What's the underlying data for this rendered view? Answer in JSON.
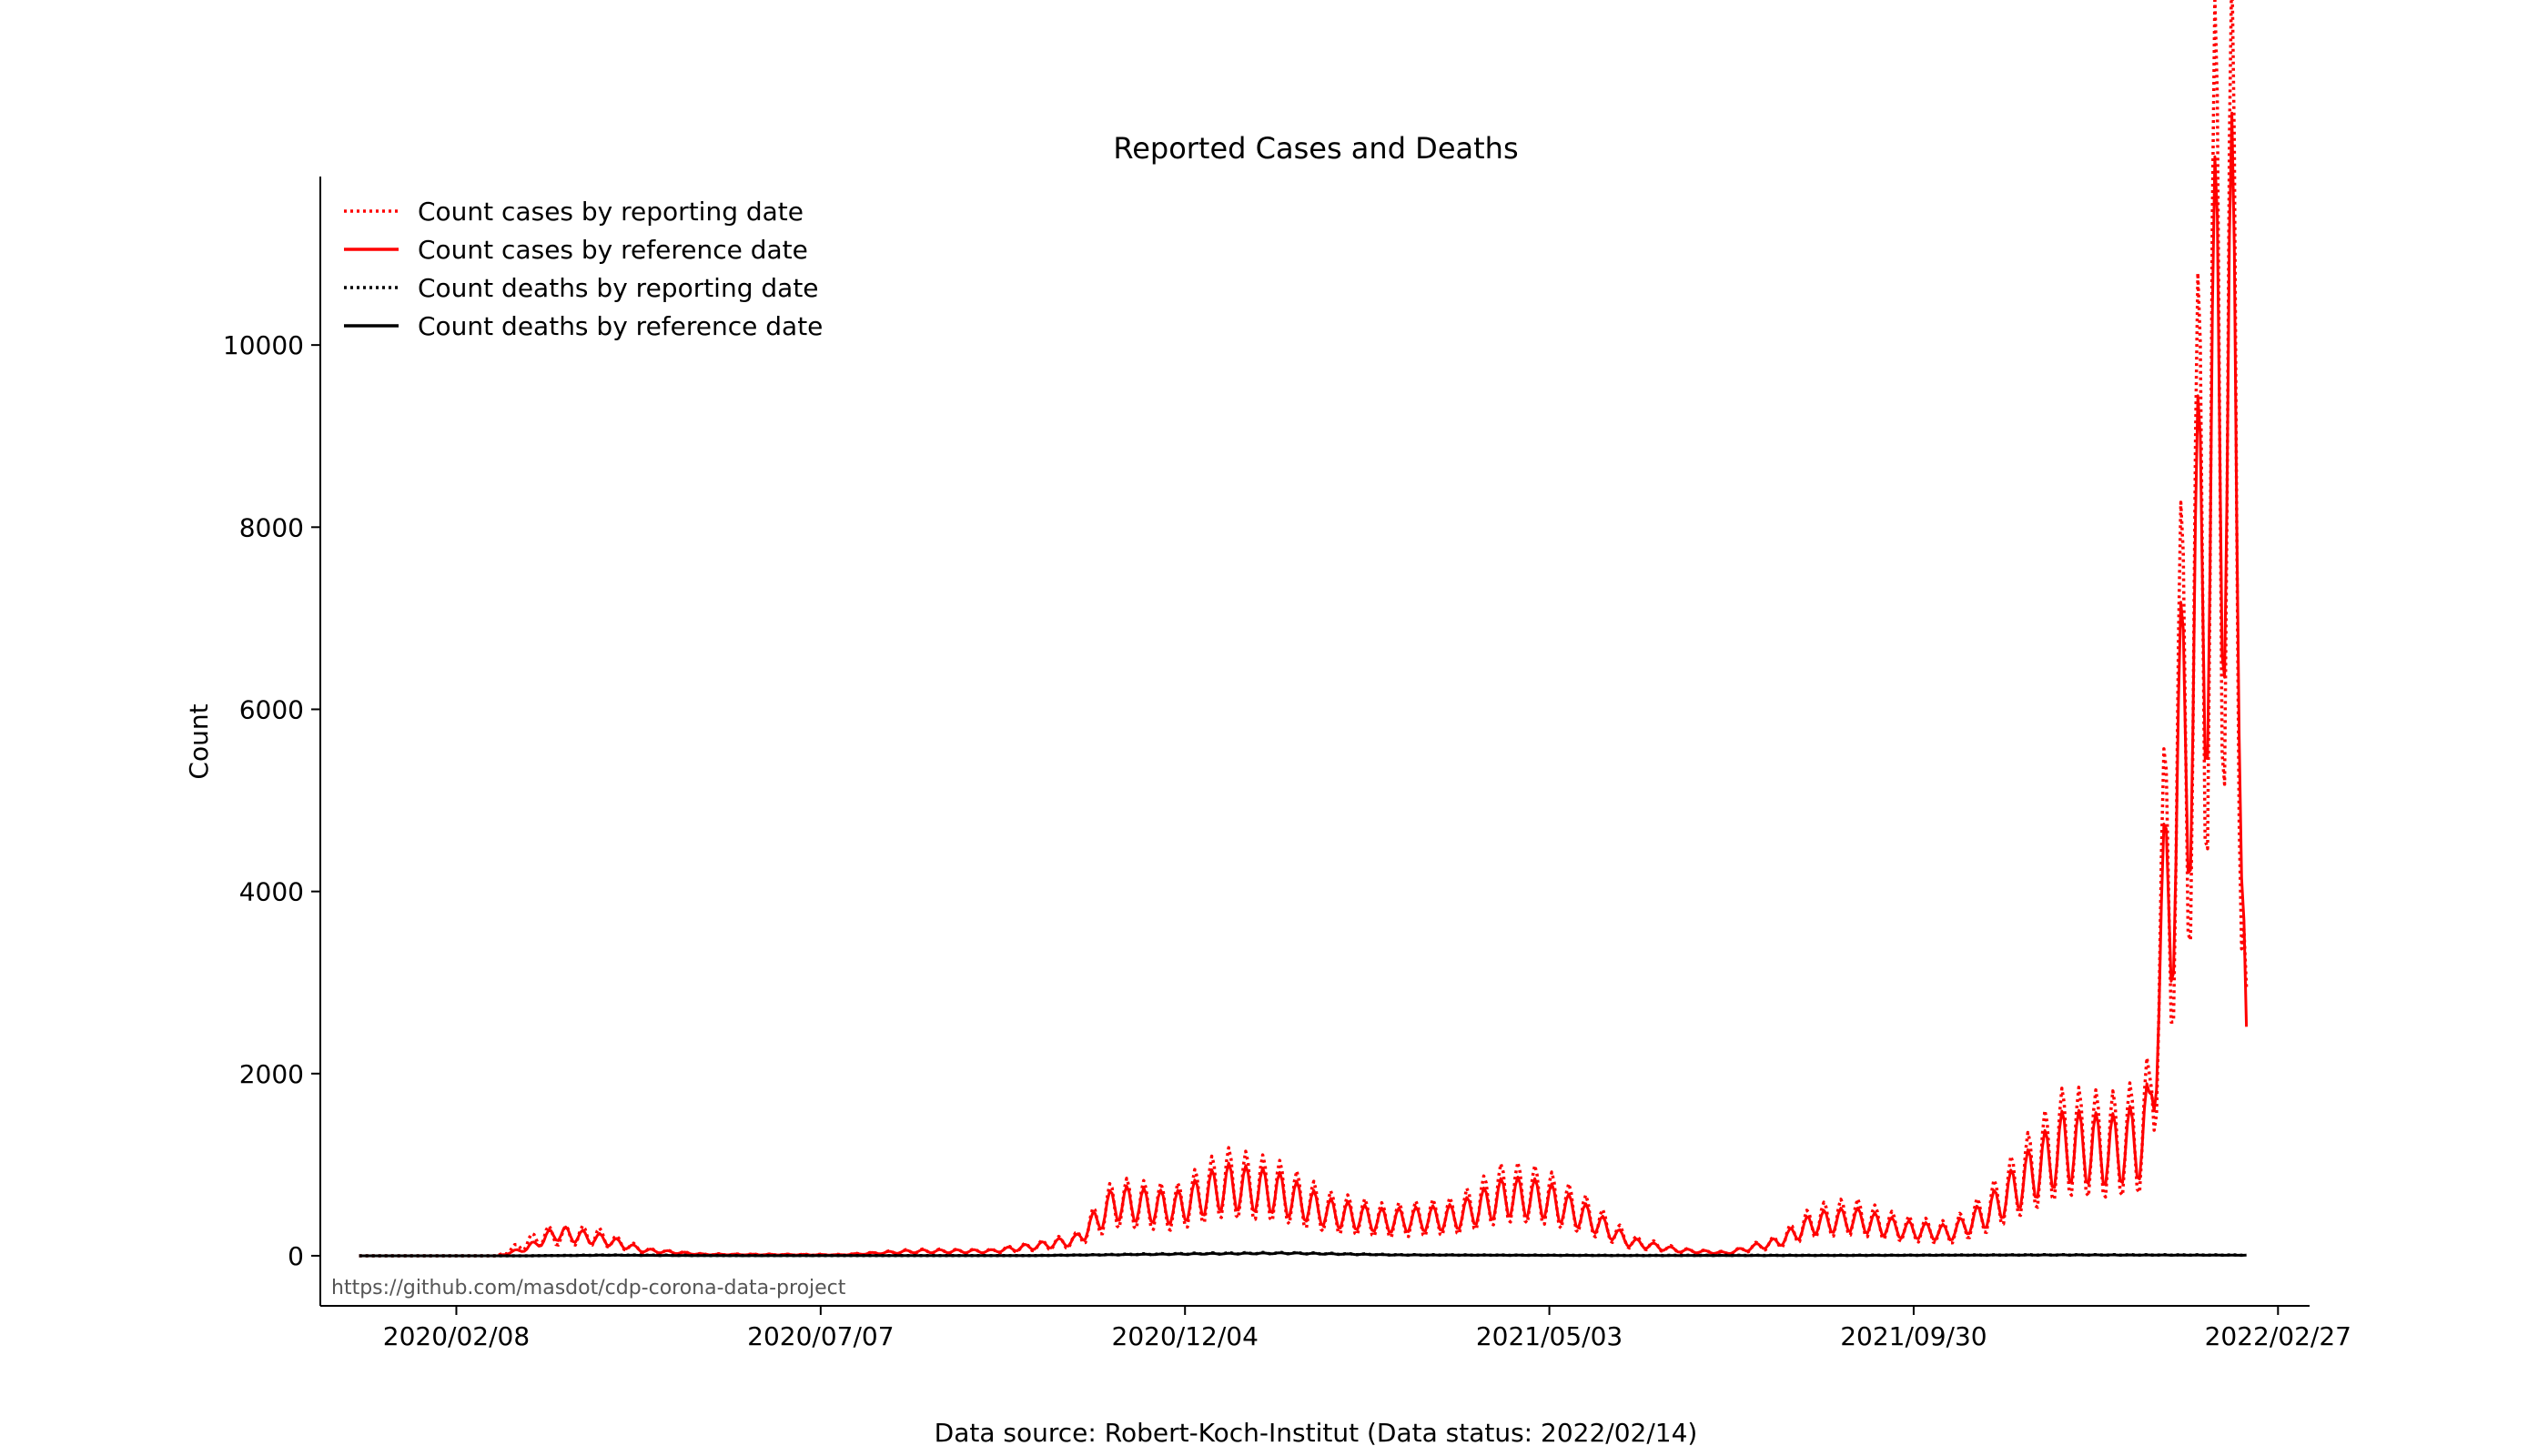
{
  "chart_data": {
    "type": "line",
    "title": "Reported Cases and Deaths",
    "xlabel": "",
    "ylabel": "Count",
    "x_start": "2019-12-30",
    "x_end": "2022-02-14",
    "xlim": [
      "2019-12-14",
      "2022-03-12"
    ],
    "ylim": [
      -550,
      11850
    ],
    "yticks": [
      0,
      2000,
      4000,
      6000,
      8000,
      10000
    ],
    "ytick_labels": [
      "0",
      "2000",
      "4000",
      "6000",
      "8000",
      "10000"
    ],
    "xticks": [
      "2020-02-08",
      "2020-07-07",
      "2020-12-04",
      "2021-05-03",
      "2021-09-30",
      "2022-02-27"
    ],
    "xtick_labels": [
      "2020/02/08",
      "2020/07/07",
      "2020/12/04",
      "2021/05/03",
      "2021/09/30",
      "2022/02/27"
    ],
    "legend_position": "top-left",
    "series": [
      {
        "name": "Count cases by reporting date",
        "color": "#ff0000",
        "style": "dotted",
        "weekly_modulation": 0.5,
        "anchors": [
          [
            "2019-12-30",
            0
          ],
          [
            "2020-02-25",
            0
          ],
          [
            "2020-03-15",
            220
          ],
          [
            "2020-04-05",
            220
          ],
          [
            "2020-04-25",
            60
          ],
          [
            "2020-05-20",
            15
          ],
          [
            "2020-07-15",
            10
          ],
          [
            "2020-08-15",
            50
          ],
          [
            "2020-09-15",
            50
          ],
          [
            "2020-10-05",
            110
          ],
          [
            "2020-10-20",
            170
          ],
          [
            "2020-11-05",
            580
          ],
          [
            "2020-11-30",
            520
          ],
          [
            "2020-12-20",
            800
          ],
          [
            "2021-01-10",
            720
          ],
          [
            "2021-02-01",
            480
          ],
          [
            "2021-02-25",
            380
          ],
          [
            "2021-03-25",
            430
          ],
          [
            "2021-04-15",
            700
          ],
          [
            "2021-05-01",
            650
          ],
          [
            "2021-05-20",
            420
          ],
          [
            "2021-06-05",
            160
          ],
          [
            "2021-06-25",
            60
          ],
          [
            "2021-07-15",
            30
          ],
          [
            "2021-08-05",
            150
          ],
          [
            "2021-08-20",
            380
          ],
          [
            "2021-09-05",
            430
          ],
          [
            "2021-09-25",
            300
          ],
          [
            "2021-10-15",
            250
          ],
          [
            "2021-10-30",
            480
          ],
          [
            "2021-11-15",
            880
          ],
          [
            "2021-12-01",
            1250
          ],
          [
            "2021-12-20",
            1200
          ],
          [
            "2022-01-01",
            1300
          ],
          [
            "2022-01-05",
            1500
          ],
          [
            "2022-01-08",
            2900
          ],
          [
            "2022-01-15",
            4800
          ],
          [
            "2022-01-25",
            7200
          ],
          [
            "2022-02-03",
            9800
          ],
          [
            "2022-02-08",
            9500
          ],
          [
            "2022-02-11",
            8400
          ],
          [
            "2022-02-13",
            4200
          ],
          [
            "2022-02-14",
            2300
          ]
        ]
      },
      {
        "name": "Count cases by reference date",
        "color": "#ff0000",
        "style": "solid",
        "weekly_modulation": 0.35,
        "anchors": [
          [
            "2019-12-30",
            0
          ],
          [
            "2020-02-25",
            0
          ],
          [
            "2020-03-08",
            80
          ],
          [
            "2020-03-20",
            250
          ],
          [
            "2020-04-10",
            170
          ],
          [
            "2020-04-25",
            60
          ],
          [
            "2020-05-20",
            15
          ],
          [
            "2020-07-15",
            10
          ],
          [
            "2020-08-15",
            50
          ],
          [
            "2020-09-15",
            50
          ],
          [
            "2020-10-05",
            110
          ],
          [
            "2020-10-20",
            170
          ],
          [
            "2020-11-05",
            580
          ],
          [
            "2020-11-30",
            520
          ],
          [
            "2020-12-20",
            760
          ],
          [
            "2021-01-10",
            700
          ],
          [
            "2021-02-01",
            470
          ],
          [
            "2021-02-25",
            380
          ],
          [
            "2021-03-25",
            420
          ],
          [
            "2021-04-15",
            650
          ],
          [
            "2021-05-01",
            620
          ],
          [
            "2021-05-20",
            400
          ],
          [
            "2021-06-05",
            150
          ],
          [
            "2021-06-25",
            60
          ],
          [
            "2021-07-15",
            30
          ],
          [
            "2021-08-05",
            150
          ],
          [
            "2021-08-20",
            360
          ],
          [
            "2021-09-05",
            400
          ],
          [
            "2021-09-25",
            290
          ],
          [
            "2021-10-15",
            250
          ],
          [
            "2021-10-30",
            460
          ],
          [
            "2021-11-15",
            840
          ],
          [
            "2021-12-01",
            1200
          ],
          [
            "2021-12-20",
            1150
          ],
          [
            "2022-01-01",
            1250
          ],
          [
            "2022-01-05",
            1450
          ],
          [
            "2022-01-08",
            2700
          ],
          [
            "2022-01-15",
            4600
          ],
          [
            "2022-01-25",
            7000
          ],
          [
            "2022-02-03",
            9500
          ],
          [
            "2022-02-08",
            9300
          ],
          [
            "2022-02-11",
            8200
          ],
          [
            "2022-02-13",
            4100
          ],
          [
            "2022-02-14",
            2100
          ]
        ]
      },
      {
        "name": "Count deaths by reporting date",
        "color": "#000000",
        "style": "dotted",
        "weekly_modulation": 0.3,
        "anchors": [
          [
            "2019-12-30",
            0
          ],
          [
            "2020-03-10",
            0
          ],
          [
            "2020-04-10",
            8
          ],
          [
            "2020-06-01",
            2
          ],
          [
            "2020-10-01",
            2
          ],
          [
            "2020-12-15",
            25
          ],
          [
            "2021-01-15",
            30
          ],
          [
            "2021-03-01",
            10
          ],
          [
            "2021-06-01",
            4
          ],
          [
            "2021-09-01",
            5
          ],
          [
            "2021-12-01",
            10
          ],
          [
            "2022-02-14",
            8
          ]
        ]
      },
      {
        "name": "Count deaths by reference date",
        "color": "#000000",
        "style": "solid",
        "weekly_modulation": 0.2,
        "anchors": [
          [
            "2019-12-30",
            0
          ],
          [
            "2020-03-10",
            0
          ],
          [
            "2020-04-10",
            6
          ],
          [
            "2020-06-01",
            1
          ],
          [
            "2020-10-01",
            2
          ],
          [
            "2020-12-15",
            22
          ],
          [
            "2021-01-15",
            28
          ],
          [
            "2021-03-01",
            9
          ],
          [
            "2021-06-01",
            3
          ],
          [
            "2021-09-01",
            4
          ],
          [
            "2021-12-01",
            9
          ],
          [
            "2022-02-14",
            6
          ]
        ]
      }
    ],
    "annotation": "https://github.com/masdot/cdp-corona-data-project",
    "footer": "Data source: Robert-Koch-Institut (Data status: 2022/02/14)"
  }
}
